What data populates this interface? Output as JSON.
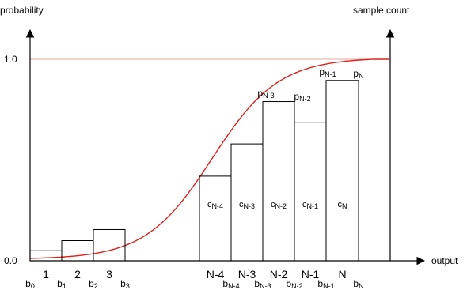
{
  "axes": {
    "left_label": "probability",
    "right_label": "sample count",
    "x_label": "output",
    "tick_top": "1.0",
    "tick_bottom": "0.0"
  },
  "bins": [
    {
      "label": "1",
      "height": 0.05,
      "count": ""
    },
    {
      "label": "2",
      "height": 0.1,
      "count": ""
    },
    {
      "label": "3",
      "height": 0.155,
      "count": ""
    },
    {
      "label": "N-4",
      "height": 0.42,
      "count": "N-4"
    },
    {
      "label": "N-3",
      "height": 0.58,
      "count": "N-3"
    },
    {
      "label": "N-2",
      "height": 0.79,
      "count": "N-2"
    },
    {
      "label": "N-1",
      "height": 0.685,
      "count": "N-1"
    },
    {
      "label": "N",
      "height": 0.895,
      "count": "N"
    }
  ],
  "boundaries": [
    "0",
    "1",
    "2",
    "3",
    "N-4",
    "N-3",
    "N-2",
    "N-1",
    "N"
  ],
  "cdf_points": [
    {
      "label": "N-3"
    },
    {
      "label": "N-2"
    },
    {
      "label": "N-1"
    },
    {
      "label": "N"
    }
  ],
  "letters": {
    "bin": "b",
    "count": "c",
    "prob": "p"
  },
  "colors": {
    "curve": "#e0201a",
    "line": "#000000"
  }
}
